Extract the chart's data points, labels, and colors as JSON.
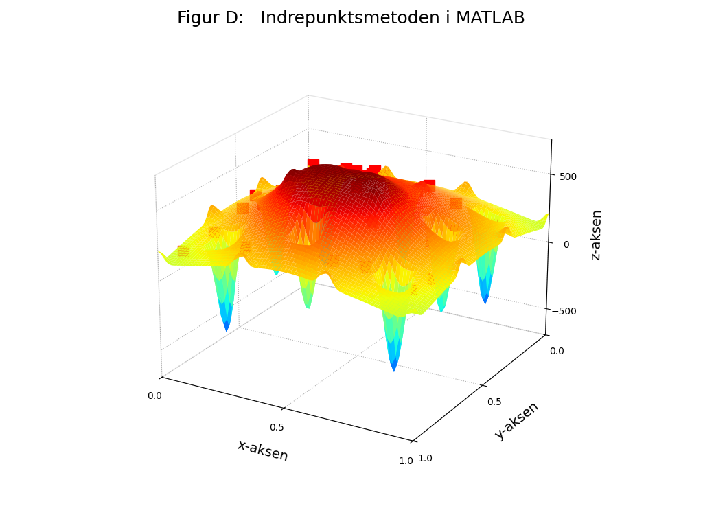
{
  "title": "Figur D:   Indrepunktsmetoden i MATLAB",
  "xlabel": "x-aksen",
  "ylabel": "y-aksen",
  "zlabel": "z-aksen",
  "xlim": [
    0,
    1
  ],
  "ylim": [
    0,
    1
  ],
  "zlim": [
    -700,
    750
  ],
  "zticks": [
    -500,
    0,
    500
  ],
  "xticks": [
    0,
    0.5,
    1
  ],
  "yticks": [
    0,
    0.5,
    1
  ],
  "title_fontsize": 18,
  "label_fontsize": 14,
  "red_markers": [
    [
      0.05,
      0.92
    ],
    [
      0.1,
      0.8
    ],
    [
      0.12,
      0.65
    ],
    [
      0.08,
      0.5
    ],
    [
      0.15,
      0.38
    ],
    [
      0.2,
      0.88
    ],
    [
      0.25,
      0.72
    ],
    [
      0.22,
      0.55
    ],
    [
      0.18,
      0.32
    ],
    [
      0.3,
      0.92
    ],
    [
      0.35,
      0.75
    ],
    [
      0.38,
      0.6
    ],
    [
      0.32,
      0.45
    ],
    [
      0.28,
      0.25
    ],
    [
      0.42,
      0.88
    ],
    [
      0.48,
      0.72
    ],
    [
      0.5,
      0.58
    ],
    [
      0.45,
      0.42
    ],
    [
      0.4,
      0.22
    ],
    [
      0.55,
      0.85
    ],
    [
      0.6,
      0.68
    ],
    [
      0.58,
      0.52
    ],
    [
      0.52,
      0.35
    ],
    [
      0.65,
      0.92
    ],
    [
      0.7,
      0.75
    ],
    [
      0.72,
      0.58
    ],
    [
      0.68,
      0.4
    ],
    [
      0.75,
      0.88
    ],
    [
      0.8,
      0.7
    ],
    [
      0.82,
      0.55
    ],
    [
      0.78,
      0.3
    ],
    [
      0.88,
      0.8
    ],
    [
      0.9,
      0.62
    ],
    [
      0.85,
      0.45
    ],
    [
      0.92,
      0.3
    ],
    [
      0.95,
      0.78
    ],
    [
      0.62,
      0.2
    ],
    [
      0.48,
      0.12
    ],
    [
      0.3,
      0.12
    ],
    [
      0.15,
      0.15
    ]
  ],
  "background_color": "#ffffff",
  "surface_alpha": 1.0,
  "n_grid": 80,
  "elev": 22,
  "azim": -60
}
